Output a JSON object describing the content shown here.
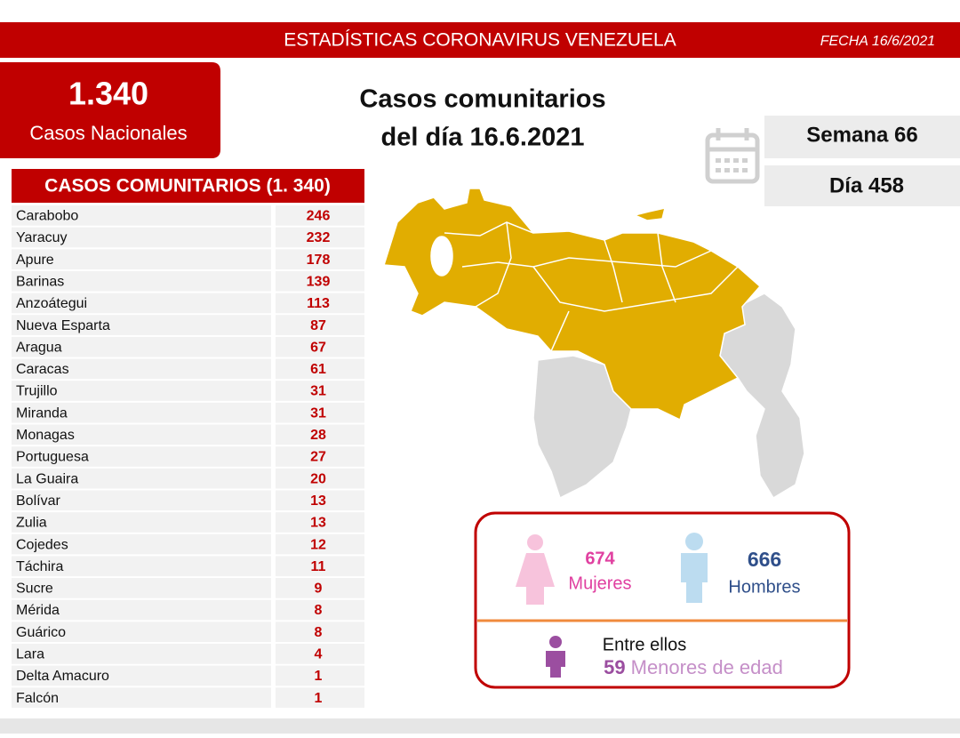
{
  "header": {
    "title": "ESTADÍSTICAS CORONAVIRUS VENEZUELA",
    "date": "FECHA 16/6/2021"
  },
  "national": {
    "total": "1.340",
    "label": "Casos Nacionales"
  },
  "headline": {
    "line1": "Casos comunitarios",
    "line2": "del día 16.6.2021"
  },
  "calendar": {
    "week": "Semana 66",
    "day": "Día 458"
  },
  "table": {
    "title": "CASOS COMUNITARIOS (1. 340)",
    "rows": [
      [
        "Carabobo",
        246
      ],
      [
        "Yaracuy",
        232
      ],
      [
        "Apure",
        178
      ],
      [
        "Barinas",
        139
      ],
      [
        "Anzoátegui",
        113
      ],
      [
        "Nueva Esparta",
        87
      ],
      [
        "Aragua",
        67
      ],
      [
        "Caracas",
        61
      ],
      [
        "Trujillo",
        31
      ],
      [
        "Miranda",
        31
      ],
      [
        "Monagas",
        28
      ],
      [
        "Portuguesa",
        27
      ],
      [
        "La Guaira",
        20
      ],
      [
        "Bolívar",
        13
      ],
      [
        "Zulia",
        13
      ],
      [
        "Cojedes",
        12
      ],
      [
        "Táchira",
        11
      ],
      [
        "Sucre",
        9
      ],
      [
        "Mérida",
        8
      ],
      [
        "Guárico",
        8
      ],
      [
        "Lara",
        4
      ],
      [
        "Delta Amacuro",
        1
      ],
      [
        "Falcón",
        1
      ]
    ]
  },
  "gender": {
    "women": {
      "value": 674,
      "label": "Mujeres"
    },
    "men": {
      "value": 666,
      "label": "Hombres"
    },
    "minors": {
      "intro": "Entre ellos",
      "value": 59,
      "label": "Menores de edad"
    }
  }
}
